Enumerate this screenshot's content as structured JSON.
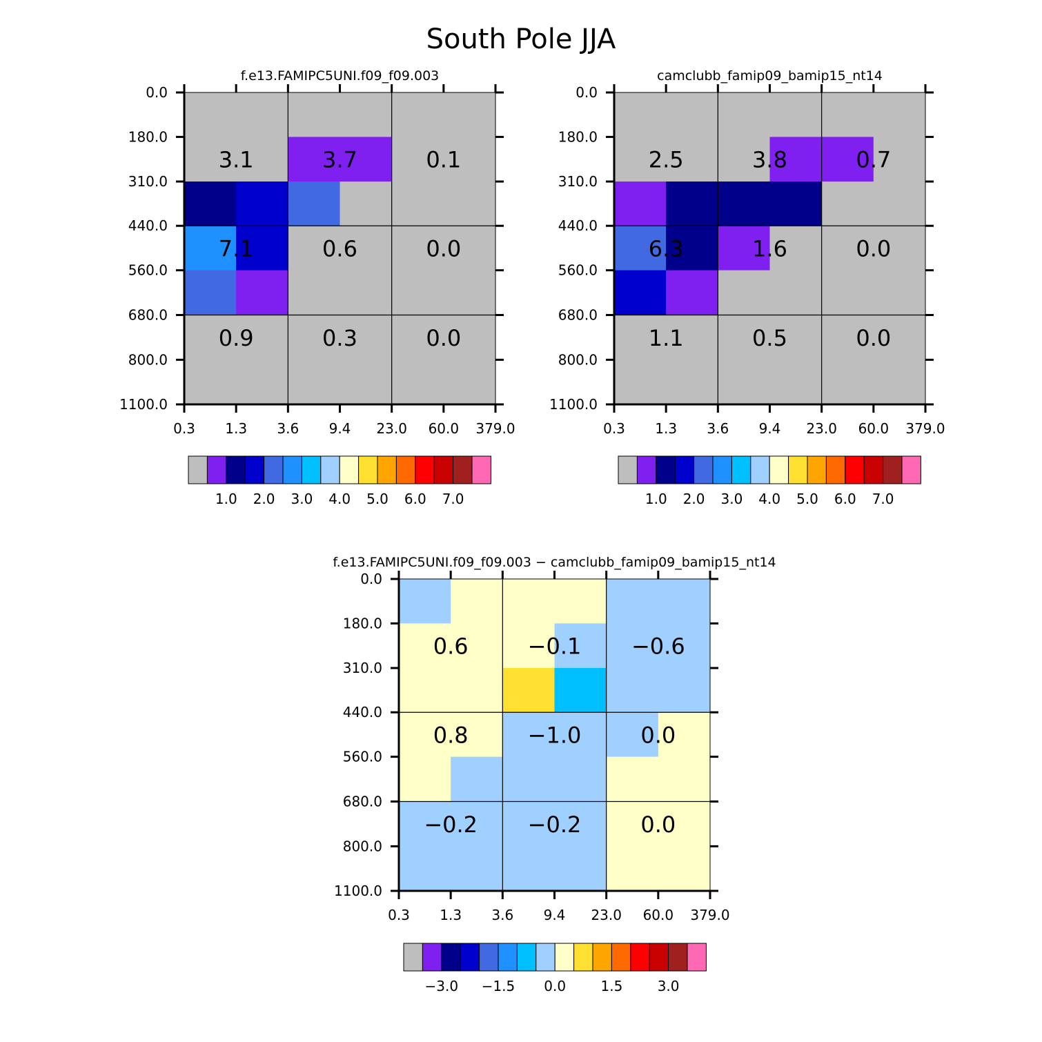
{
  "figure": {
    "title": "South Pole JJA"
  },
  "x_tick_labels": [
    "0.3",
    "1.3",
    "3.6",
    "9.4",
    "23.0",
    "60.0",
    "379.0"
  ],
  "y_tick_labels": [
    "0.0",
    "180.0",
    "310.0",
    "440.0",
    "560.0",
    "680.0",
    "800.0",
    "1100.0"
  ],
  "colors": {
    "palette": [
      "#bebebe",
      "#8020f0",
      "#00008b",
      "#0000cd",
      "#4169e1",
      "#1e90ff",
      "#00bfff",
      "#a0d0ff",
      "#ffffc8",
      "#ffe030",
      "#ffa500",
      "#ff6a00",
      "#ff0000",
      "#c80000",
      "#a02020",
      "#ff69b4"
    ]
  },
  "chart_data": [
    {
      "type": "heatmap",
      "title": "f.e13.FAMIPC5UNI.f09_f09.003",
      "cells": [
        [
          0,
          0,
          0,
          0,
          0,
          0
        ],
        [
          0,
          0,
          1,
          1,
          0,
          0
        ],
        [
          2,
          3,
          4,
          0,
          0,
          0
        ],
        [
          5,
          3,
          0,
          0,
          0,
          0
        ],
        [
          4,
          1,
          0,
          0,
          0,
          0
        ],
        [
          0,
          0,
          0,
          0,
          0,
          0
        ],
        [
          0,
          0,
          0,
          0,
          0,
          0
        ]
      ],
      "box_values": [
        [
          "3.1",
          "3.7",
          "0.1"
        ],
        [
          "7.1",
          "0.6",
          "0.0"
        ],
        [
          "0.9",
          "0.3",
          "0.0"
        ]
      ],
      "colorbar_labels": [
        "1.0",
        "2.0",
        "3.0",
        "4.0",
        "5.0",
        "6.0",
        "7.0"
      ]
    },
    {
      "type": "heatmap",
      "title": "camclubb_famip09_bamip15_nt14",
      "cells": [
        [
          0,
          0,
          0,
          0,
          0,
          0
        ],
        [
          0,
          0,
          0,
          1,
          1,
          0
        ],
        [
          1,
          2,
          2,
          2,
          0,
          0
        ],
        [
          4,
          2,
          1,
          0,
          0,
          0
        ],
        [
          3,
          1,
          0,
          0,
          0,
          0
        ],
        [
          0,
          0,
          0,
          0,
          0,
          0
        ],
        [
          0,
          0,
          0,
          0,
          0,
          0
        ]
      ],
      "box_values": [
        [
          "2.5",
          "3.8",
          "0.7"
        ],
        [
          "6.3",
          "1.6",
          "0.0"
        ],
        [
          "1.1",
          "0.5",
          "0.0"
        ]
      ],
      "colorbar_labels": [
        "1.0",
        "2.0",
        "3.0",
        "4.0",
        "5.0",
        "6.0",
        "7.0"
      ]
    },
    {
      "type": "heatmap",
      "title": "f.e13.FAMIPC5UNI.f09_f09.003 − camclubb_famip09_bamip15_nt14",
      "cells": [
        [
          7,
          8,
          8,
          8,
          7,
          7
        ],
        [
          8,
          8,
          8,
          7,
          7,
          7
        ],
        [
          8,
          8,
          9,
          6,
          7,
          7
        ],
        [
          8,
          8,
          7,
          7,
          7,
          8
        ],
        [
          8,
          7,
          7,
          7,
          8,
          8
        ],
        [
          7,
          7,
          7,
          7,
          8,
          8
        ],
        [
          7,
          7,
          7,
          7,
          8,
          8
        ]
      ],
      "box_values": [
        [
          "0.6",
          "−0.1",
          "−0.6"
        ],
        [
          "0.8",
          "−1.0",
          "0.0"
        ],
        [
          "−0.2",
          "−0.2",
          "0.0"
        ]
      ],
      "colorbar_labels": [
        "−3.0",
        "−1.5",
        "0.0",
        "1.5",
        "3.0"
      ]
    }
  ]
}
